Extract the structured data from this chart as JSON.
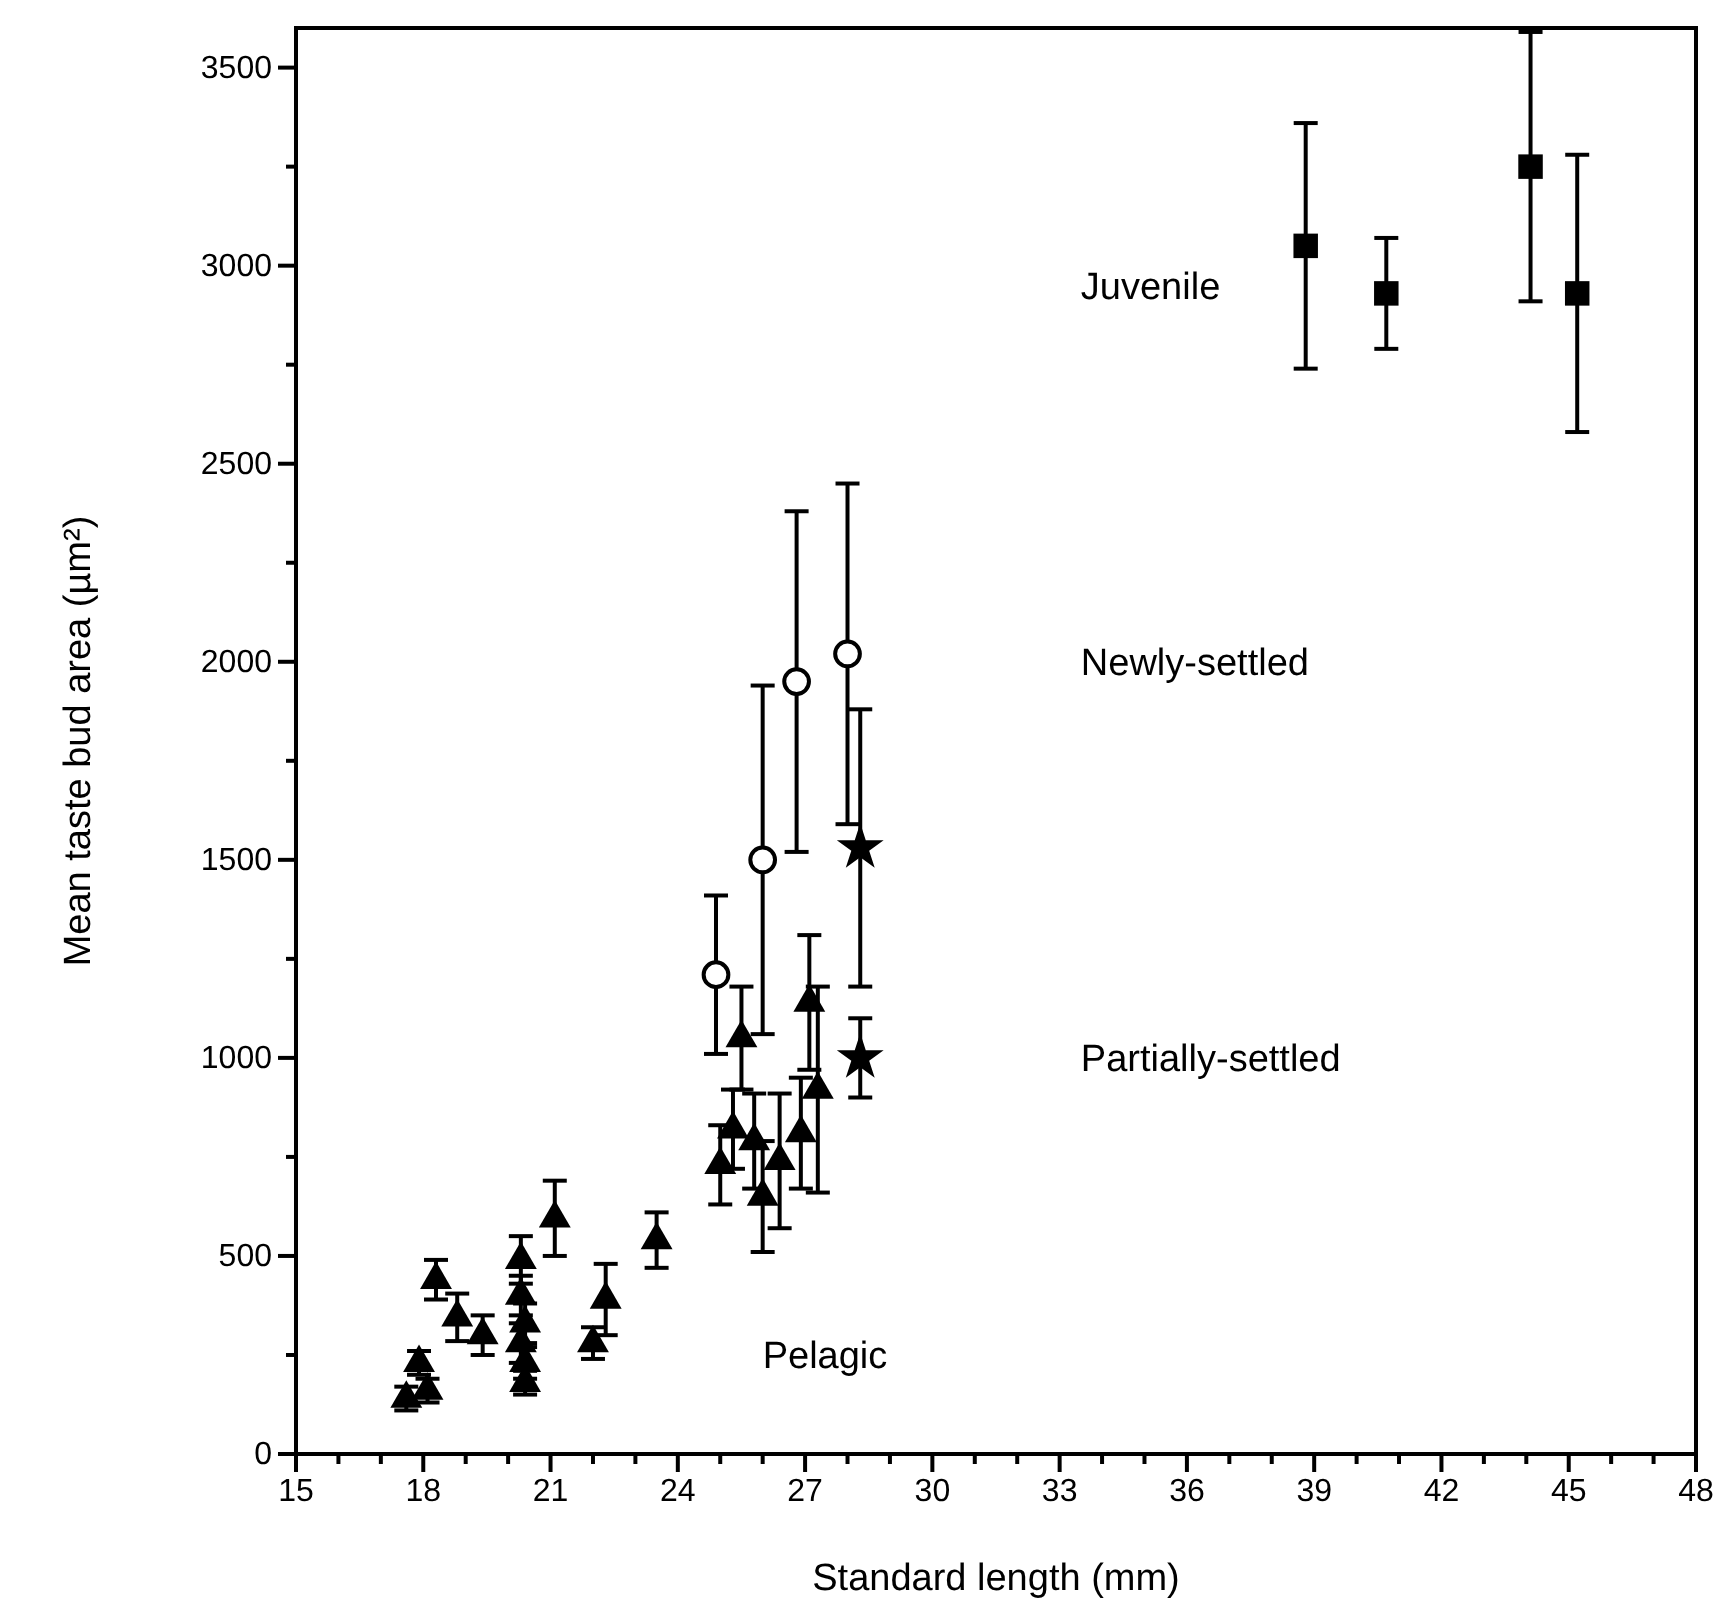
{
  "chart_data": {
    "type": "scatter",
    "xlabel": "Standard length (mm)",
    "ylabel": "Mean taste bud area (µm²)",
    "xlim": [
      15,
      48
    ],
    "xticks": [
      15,
      18,
      21,
      24,
      27,
      30,
      33,
      36,
      39,
      42,
      45,
      48
    ],
    "ylim": [
      0,
      3600
    ],
    "yticks": [
      0,
      500,
      1000,
      1500,
      2000,
      2500,
      3000,
      3500
    ],
    "grid": false,
    "legend": false,
    "annotations": [
      "Juvenile",
      "Newly-settled",
      "Partially-settled",
      "Pelagic"
    ],
    "series": [
      {
        "color": "#000000",
        "marker": "square",
        "x": [
          38.8,
          40.7,
          44.1,
          45.2
        ],
        "values": [
          3050,
          2930,
          3250,
          2930
        ],
        "errors": [
          310,
          140,
          340,
          350
        ]
      },
      {
        "color": "#000000",
        "marker": "circle",
        "x": [
          24.9,
          26.0,
          26.8,
          28.0
        ],
        "values": [
          1210,
          1500,
          1950,
          2020
        ],
        "errors": [
          200,
          440,
          430,
          430
        ]
      },
      {
        "color": "#000000",
        "marker": "star",
        "x": [
          28.3,
          28.3
        ],
        "values": [
          1530,
          1000
        ],
        "errors": [
          350,
          100
        ]
      },
      {
        "color": "#000000",
        "marker": "triangle",
        "x": [
          17.6,
          18.1,
          17.9,
          18.3,
          18.8,
          19.4,
          20.3,
          20.3,
          20.4,
          20.3,
          20.4,
          20.4,
          21.1,
          22.0,
          22.3,
          23.5,
          25.0,
          25.3,
          25.5,
          25.8,
          26.0,
          26.4,
          26.9,
          27.1,
          27.3
        ],
        "values": [
          140,
          160,
          230,
          440,
          345,
          300,
          490,
          400,
          330,
          280,
          230,
          180,
          595,
          280,
          390,
          540,
          730,
          820,
          1050,
          790,
          650,
          740,
          810,
          1140,
          920
        ],
        "errors": [
          30,
          30,
          30,
          50,
          60,
          50,
          60,
          50,
          50,
          50,
          40,
          30,
          95,
          40,
          90,
          70,
          100,
          100,
          130,
          120,
          140,
          170,
          140,
          170,
          260
        ]
      }
    ]
  }
}
